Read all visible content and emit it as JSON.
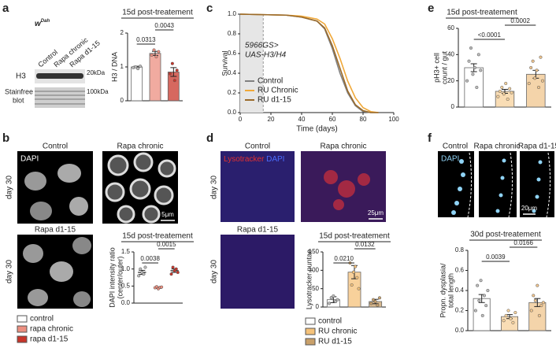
{
  "figure": {
    "letters": [
      "a",
      "b",
      "c",
      "d",
      "e",
      "f"
    ],
    "a": {
      "genotype": "w",
      "genotype_sup": "Dah",
      "lanes": [
        "Control",
        "Rapa chronic",
        "Rapa d1-15"
      ],
      "band_h3": "H3",
      "marker_h3": "20kDa",
      "band_blot": [
        "Stainfree",
        "blot"
      ],
      "marker_blot": "100kDa"
    },
    "b": {
      "stain": "DAPI",
      "images": [
        "Control",
        "Rapa chronic",
        "Rapa d1-15"
      ],
      "age": "day 30",
      "scale": "5μm"
    },
    "d": {
      "stain_red": "Lysotracker",
      "stain_blue": "DAPI",
      "images": [
        "Control",
        "Rapa chronic",
        "Rapa d1-15"
      ],
      "age": "day 30",
      "scale": "25μm"
    },
    "f": {
      "stain": "DAPI",
      "images": [
        "Control",
        "Rapa chronic",
        "Rapa d1-15"
      ],
      "scale": "20μm"
    }
  },
  "chart_data": [
    {
      "type": "bar",
      "title": "15d post-treatement",
      "ylabel": [
        "H3 / DNA"
      ],
      "ylim": [
        0,
        2
      ],
      "yticks": [
        0,
        1,
        2
      ],
      "values": [
        1.0,
        1.4,
        0.85
      ],
      "errors": [
        0.02,
        0.06,
        0.13
      ],
      "colors": [
        "#ffffff",
        "#ec8f80",
        "#c8352a"
      ],
      "points": [
        [
          0.98,
          1.0,
          0.95,
          1.02
        ],
        [
          1.35,
          1.5,
          1.3,
          1.45
        ],
        [
          0.8,
          1.1,
          0.6,
          0.9
        ]
      ],
      "annotations": [
        "0.0313",
        "0.0043"
      ]
    },
    {
      "type": "dot",
      "title": "15d post-treatement",
      "ylabel": [
        "DAPI intensity ratio",
        "(center/outer)"
      ],
      "ylim": [
        0,
        1.5
      ],
      "yticks": [
        {
          "value": 0,
          "label": "0.0"
        },
        {
          "value": 0.5,
          "label": "0.5"
        },
        {
          "value": 1,
          "label": "1.0"
        },
        {
          "value": 1.5,
          "label": "1.5"
        }
      ],
      "values": [
        0.9,
        0.45,
        0.95
      ],
      "errors": [
        0.06,
        0.02,
        0.05
      ],
      "colors": [
        "#ffffff",
        "#ec8f80",
        "#c8352a"
      ],
      "points": [
        [
          0.8,
          1.0,
          0.9,
          0.85,
          1.05
        ],
        [
          0.45,
          0.48,
          0.42,
          0.46,
          0.47
        ],
        [
          0.85,
          1.05,
          0.95,
          1.0,
          0.9
        ]
      ],
      "annotations": [
        "0.0038",
        "0.0015"
      ],
      "legend": [
        "control",
        "rapa chronic",
        "rapa d1-15"
      ]
    },
    {
      "type": "line",
      "xlabel": "Time (days)",
      "ylabel": [
        "Survival"
      ],
      "xlim": [
        0,
        100
      ],
      "xticks": [
        0,
        20,
        40,
        60,
        80,
        100
      ],
      "ylim": [
        0,
        1
      ],
      "yticks": [
        {
          "value": 0,
          "label": "0.0"
        },
        {
          "value": 0.2,
          "label": "0.2"
        },
        {
          "value": 0.4,
          "label": "0.4"
        },
        {
          "value": 0.6,
          "label": "0.6"
        },
        {
          "value": 0.8,
          "label": "0.8"
        },
        {
          "value": 1,
          "label": "1.0"
        }
      ],
      "shaded_x": [
        0,
        15
      ],
      "annotation": [
        "5966GS>",
        "UAS-H3/H4"
      ],
      "legend_position": "lower left",
      "x": [
        0,
        30,
        40,
        50,
        55,
        60,
        65,
        70,
        75,
        80,
        85,
        90
      ],
      "series": [
        {
          "name": "Control",
          "color": "#808080",
          "values": [
            1,
            0.99,
            0.97,
            0.93,
            0.85,
            0.65,
            0.4,
            0.2,
            0.07,
            0.01,
            0,
            0
          ]
        },
        {
          "name": "RU Chronic",
          "color": "#f0a838",
          "values": [
            1,
            0.99,
            0.98,
            0.95,
            0.9,
            0.75,
            0.55,
            0.32,
            0.15,
            0.05,
            0.01,
            0
          ]
        },
        {
          "name": "RU d1-15",
          "color": "#9a6a2a",
          "values": [
            1,
            0.99,
            0.97,
            0.93,
            0.86,
            0.68,
            0.45,
            0.22,
            0.08,
            0.02,
            0,
            0
          ]
        }
      ]
    },
    {
      "type": "bar",
      "title": "15d post-treatement",
      "ylabel": [
        "Lysotracker puntae"
      ],
      "ylim": [
        0,
        150
      ],
      "yticks": [
        0,
        50,
        100,
        150
      ],
      "values": [
        20,
        95,
        15
      ],
      "errors": [
        8,
        18,
        6
      ],
      "colors": [
        "#ffffff",
        "#f5c27a",
        "#c9a06a"
      ],
      "points": [
        [
          10,
          25,
          30,
          15,
          20
        ],
        [
          120,
          60,
          95,
          110,
          80,
          50
        ],
        [
          10,
          20,
          15,
          5,
          25
        ]
      ],
      "annotations": [
        "0.0210",
        "0.0132"
      ],
      "legend": [
        "control",
        "RU chronic",
        "RU d1-15"
      ]
    },
    {
      "type": "bar",
      "title": "15d post-treatement",
      "ylabel": [
        "pH3+ cell",
        "count / gut"
      ],
      "ylim": [
        0,
        60
      ],
      "yticks": [
        0,
        20,
        40,
        60
      ],
      "values": [
        30,
        12,
        25
      ],
      "errors": [
        3,
        1.5,
        3
      ],
      "colors": [
        "#ffffff",
        "#f7d29c",
        "#f0c58e"
      ],
      "points": [
        [
          20,
          35,
          45,
          25,
          30,
          15,
          40,
          28
        ],
        [
          8,
          12,
          15,
          10,
          18,
          6,
          14,
          11
        ],
        [
          18,
          30,
          35,
          22,
          28,
          15,
          38,
          20
        ]
      ],
      "annotations": [
        "<0.0001",
        "0.0002"
      ]
    },
    {
      "type": "bar",
      "title": "30d post-treatement",
      "ylabel": [
        "Propn. dysplasia/",
        "total length"
      ],
      "ylim": [
        0,
        0.8
      ],
      "yticks": [
        {
          "value": 0,
          "label": "0.0"
        },
        {
          "value": 0.2,
          "label": "0.2"
        },
        {
          "value": 0.4,
          "label": "0.4"
        },
        {
          "value": 0.6,
          "label": "0.6"
        },
        {
          "value": 0.8,
          "label": "0.8"
        }
      ],
      "values": [
        0.32,
        0.14,
        0.28
      ],
      "errors": [
        0.04,
        0.02,
        0.04
      ],
      "colors": [
        "#ffffff",
        "#f7d29c",
        "#f0c58e"
      ],
      "points": [
        [
          0.2,
          0.45,
          0.3,
          0.5,
          0.15,
          0.35,
          0.25,
          0.4
        ],
        [
          0.1,
          0.15,
          0.2,
          0.12,
          0.08,
          0.18
        ],
        [
          0.2,
          0.35,
          0.3,
          0.45,
          0.15,
          0.25,
          0.28
        ]
      ],
      "annotations": [
        "0.0039",
        "0.0166"
      ]
    }
  ]
}
